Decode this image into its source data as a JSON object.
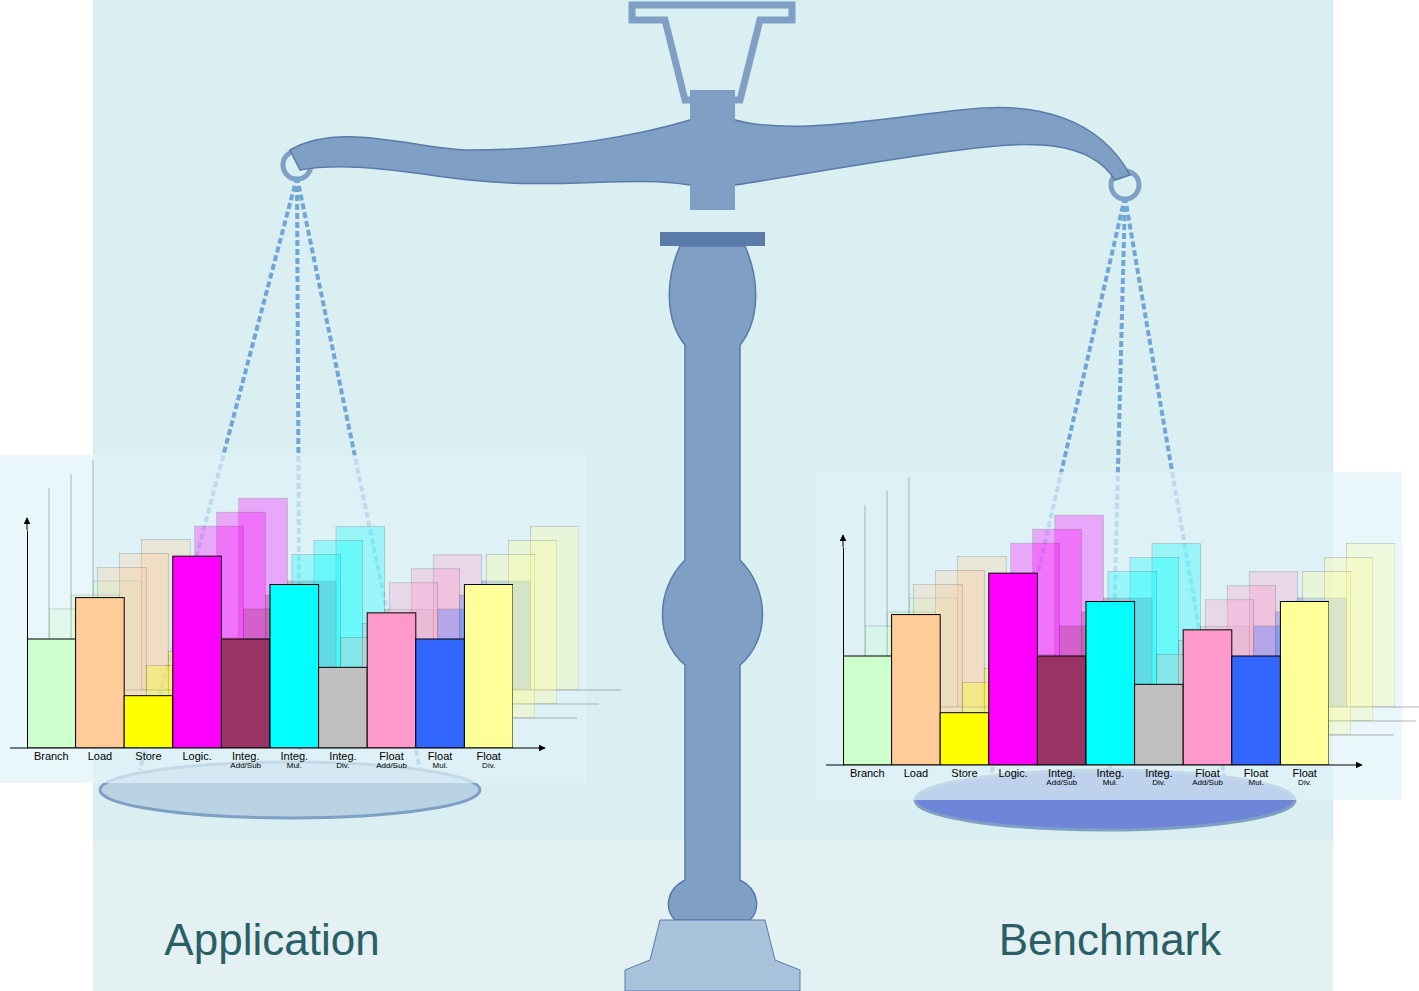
{
  "chart_data": [
    {
      "type": "bar",
      "title": "Application",
      "categories": [
        "Branch",
        "Load",
        "Store",
        "Logic.",
        "Integ. Add/Sub",
        "Integ. Mul.",
        "Integ. Div.",
        "Float Add/Sub",
        "Float Mul.",
        "Float Div."
      ],
      "values": [
        50,
        69,
        24,
        88,
        50,
        75,
        37,
        62,
        50,
        75
      ],
      "colors": [
        "#ccffcc",
        "#ffcc99",
        "#ffff00",
        "#ff00ff",
        "#993366",
        "#00ffff",
        "#c0c0c0",
        "#ff99cc",
        "#3366ff",
        "#ffff99"
      ],
      "ylim": [
        0,
        100
      ],
      "tick_labels": "x"
    },
    {
      "type": "bar",
      "title": "Benchmark",
      "categories": [
        "Branch",
        "Load",
        "Store",
        "Logic.",
        "Integ. Add/Sub",
        "Integ. Mul.",
        "Integ. Div.",
        "Float Add/Sub",
        "Float Mul.",
        "Float Div."
      ],
      "values": [
        50,
        69,
        24,
        88,
        50,
        75,
        37,
        62,
        50,
        75
      ],
      "colors": [
        "#ccffcc",
        "#ffcc99",
        "#ffff00",
        "#ff00ff",
        "#993366",
        "#00ffff",
        "#c0c0c0",
        "#ff99cc",
        "#3366ff",
        "#ffff99"
      ],
      "ylim": [
        0,
        100
      ],
      "tick_labels": "x"
    }
  ]
}
